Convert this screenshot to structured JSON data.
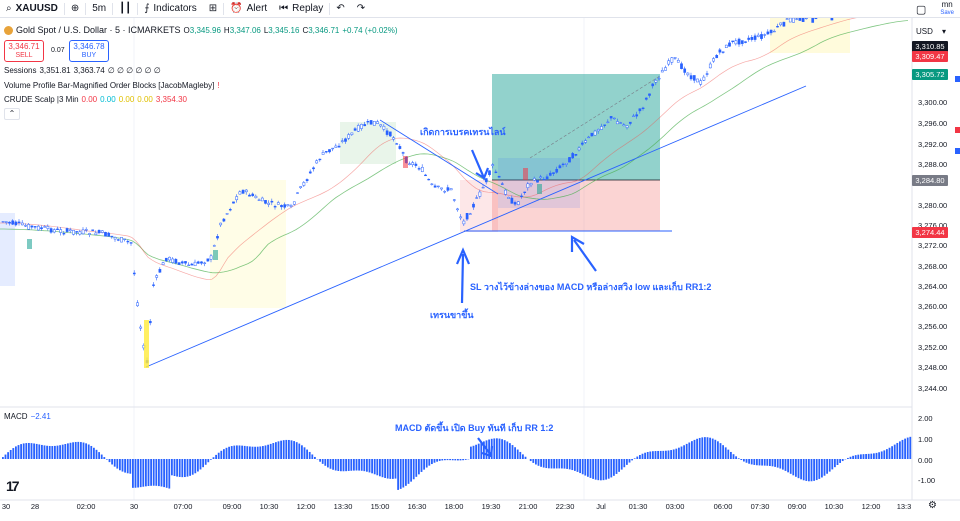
{
  "toolbar": {
    "symbol": "XAUUSD",
    "interval": "5m",
    "indicators_label": "Indicators",
    "alert_label": "Alert",
    "replay_label": "Replay",
    "save_title": "mn",
    "save_label": "Save"
  },
  "header": {
    "title": "Gold Spot / U.S. Dollar · 5 · ICMARKETS",
    "ohlc": {
      "o_label": "O",
      "o": "3,345.96",
      "h_label": "H",
      "h": "3,347.06",
      "l_label": "L",
      "l": "3,345.16",
      "c_label": "C",
      "c": "3,346.71",
      "change": "+0.74 (+0.02%)"
    }
  },
  "trade": {
    "sell_price": "3,346.71",
    "sell_label": "SELL",
    "buy_price": "3,346.78",
    "buy_label": "BUY",
    "spread": "0.07"
  },
  "indicators": {
    "sessions": {
      "name": "Sessions",
      "v1": "3,351.81",
      "v2": "3,363.74",
      "rest": "∅ ∅ ∅ ∅ ∅ ∅"
    },
    "volume_profile": "Volume Profile Bar-Magnified Order Blocks [JacobMagleby]",
    "crude": {
      "name": "CRUDE Scalp |3 Min",
      "v1": "0.00",
      "v2": "0.00",
      "v3": "0.00",
      "v4": "0.00",
      "v5": "3,354.30"
    },
    "macd": {
      "name": "MACD",
      "value": "−2.41"
    }
  },
  "annotations": {
    "breakout": "เกิดการเบรคเทรนไลน์",
    "sl": "SL วางไว้ข้างล่างของ MACD หรือล่างสวิง low และเก็บ RR1:2",
    "uptrend": "เทรนขาขึ้น",
    "macd_note": "MACD ตัดขึ้น เปิด Buy ทันที เก็บ RR 1:2"
  },
  "price_axis": {
    "currency": "USD",
    "ticks": [
      "3,300.00",
      "3,296.00",
      "3,292.00",
      "3,288.00",
      "3,280.00",
      "3,276.00",
      "3,272.00",
      "3,268.00",
      "3,264.00",
      "3,260.00",
      "3,256.00",
      "3,252.00",
      "3,248.00",
      "3,244.00"
    ],
    "tags": [
      {
        "label": "3,310.85",
        "color": "#131722"
      },
      {
        "label": "3,309.47",
        "color": "#f23645"
      },
      {
        "label": "3,305.72",
        "color": "#089981"
      },
      {
        "label": "3,284.80",
        "color": "#787b86"
      },
      {
        "label": "3,274.44",
        "color": "#f23645"
      }
    ]
  },
  "macd_axis": {
    "ticks": [
      "2.00",
      "1.00",
      "0.00",
      "-1.00"
    ]
  },
  "time_axis": {
    "ticks": [
      "30",
      "28",
      "02:00",
      "30",
      "07:00",
      "09:00",
      "10:30",
      "12:00",
      "13:30",
      "15:00",
      "16:30",
      "18:00",
      "19:30",
      "21:00",
      "22:30",
      "Jul",
      "01:30",
      "03:00",
      "06:00",
      "07:30",
      "09:00",
      "10:30",
      "12:00",
      "13:3"
    ]
  },
  "colors": {
    "up": "#089981",
    "down": "#f23645",
    "accent": "#2962ff",
    "candle": "#2962ff",
    "ema": "#4caf50",
    "profit_zone": "#26a69a",
    "loss_zone": "#ef5350"
  }
}
